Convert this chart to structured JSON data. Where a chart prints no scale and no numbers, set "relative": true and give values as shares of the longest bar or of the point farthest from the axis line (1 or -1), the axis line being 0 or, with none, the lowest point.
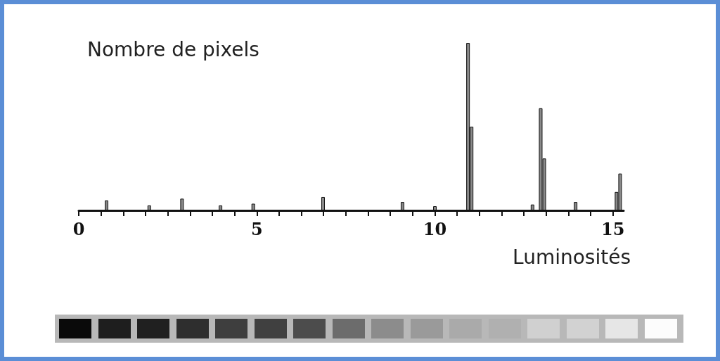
{
  "chart_data": {
    "type": "bar",
    "relative": true,
    "ylabel": "Nombre de pixels",
    "xlabel": "Luminosités",
    "x": [
      0.78,
      1.98,
      2.9,
      3.98,
      4.9,
      6.86,
      9.09,
      10.0,
      10.93,
      11.03,
      12.74,
      12.97,
      13.07,
      13.95,
      15.1,
      15.2
    ],
    "values": [
      0.06,
      0.03,
      0.07,
      0.03,
      0.04,
      0.08,
      0.05,
      0.025,
      1,
      0.5,
      0.035,
      0.61,
      0.31,
      0.05,
      0.11,
      0.22
    ],
    "color": "#8a8a8a",
    "xlim": [
      0,
      15.3
    ],
    "xticks": [
      0,
      {
        "value": 0.625,
        "label": null
      },
      {
        "value": 1.25,
        "label": null
      },
      {
        "value": 1.875,
        "label": null
      },
      {
        "value": 2.5,
        "label": null
      },
      {
        "value": 3.125,
        "label": null
      },
      {
        "value": 3.75,
        "label": null
      },
      {
        "value": 4.375,
        "label": null
      },
      5,
      {
        "value": 5.625,
        "label": null
      },
      {
        "value": 6.25,
        "label": null
      },
      {
        "value": 6.875,
        "label": null
      },
      {
        "value": 7.5,
        "label": null
      },
      {
        "value": 8.125,
        "label": null
      },
      {
        "value": 8.75,
        "label": null
      },
      {
        "value": 9.375,
        "label": null
      },
      10,
      {
        "value": 10.625,
        "label": null
      },
      {
        "value": 11.25,
        "label": null
      },
      {
        "value": 11.875,
        "label": null
      },
      {
        "value": 12.5,
        "label": null
      },
      {
        "value": 13.125,
        "label": null
      },
      {
        "value": 13.75,
        "label": null
      },
      {
        "value": 14.375,
        "label": null
      },
      15
    ],
    "grid": false
  }
}
